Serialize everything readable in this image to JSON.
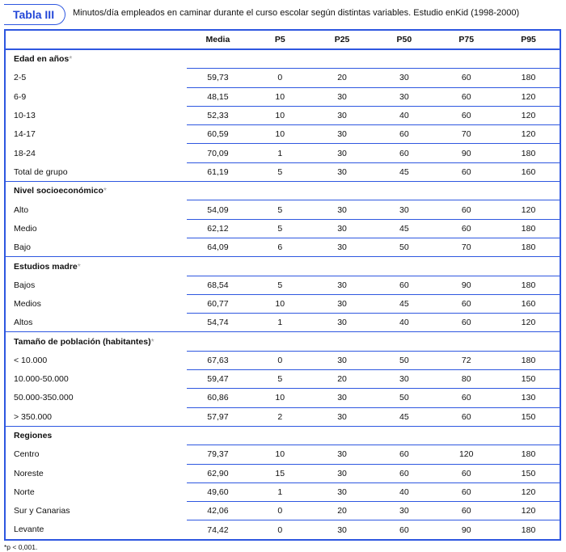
{
  "badge": "Tabla III",
  "title": "Minutos/día empleados en caminar durante el curso escolar según distintas variables. Estudio enKid (1998-2000)",
  "colors": {
    "accent": "#2e57e0",
    "badge_text": "#2448d8"
  },
  "columns": [
    "",
    "Media",
    "P5",
    "P25",
    "P50",
    "P75",
    "P95"
  ],
  "groups": [
    {
      "label": "Edad en años",
      "marker": "*",
      "rows": [
        [
          "2-5",
          "59,73",
          "0",
          "20",
          "30",
          "60",
          "180"
        ],
        [
          "6-9",
          "48,15",
          "10",
          "30",
          "30",
          "60",
          "120"
        ],
        [
          "10-13",
          "52,33",
          "10",
          "30",
          "40",
          "60",
          "120"
        ],
        [
          "14-17",
          "60,59",
          "10",
          "30",
          "60",
          "70",
          "120"
        ],
        [
          "18-24",
          "70,09",
          "1",
          "30",
          "60",
          "90",
          "180"
        ],
        [
          "Total de grupo",
          "61,19",
          "5",
          "30",
          "45",
          "60",
          "160"
        ]
      ]
    },
    {
      "label": "Nivel socioeconómico",
      "marker": "*",
      "rows": [
        [
          "Alto",
          "54,09",
          "5",
          "30",
          "30",
          "60",
          "120"
        ],
        [
          "Medio",
          "62,12",
          "5",
          "30",
          "45",
          "60",
          "180"
        ],
        [
          "Bajo",
          "64,09",
          "6",
          "30",
          "50",
          "70",
          "180"
        ]
      ]
    },
    {
      "label": "Estudios madre",
      "marker": "*",
      "rows": [
        [
          "Bajos",
          "68,54",
          "5",
          "30",
          "60",
          "90",
          "180"
        ],
        [
          "Medios",
          "60,77",
          "10",
          "30",
          "45",
          "60",
          "160"
        ],
        [
          "Altos",
          "54,74",
          "1",
          "30",
          "40",
          "60",
          "120"
        ]
      ]
    },
    {
      "label": "Tamaño de población (habitantes)",
      "marker": "*",
      "rows": [
        [
          "< 10.000",
          "67,63",
          "0",
          "30",
          "50",
          "72",
          "180"
        ],
        [
          "10.000-50.000",
          "59,47",
          "5",
          "20",
          "30",
          "80",
          "150"
        ],
        [
          "50.000-350.000",
          "60,86",
          "10",
          "30",
          "50",
          "60",
          "130"
        ],
        [
          "> 350.000",
          "57,97",
          "2",
          "30",
          "45",
          "60",
          "150"
        ]
      ]
    },
    {
      "label": "Regiones",
      "marker": "",
      "rows": [
        [
          "Centro",
          "79,37",
          "10",
          "30",
          "60",
          "120",
          "180"
        ],
        [
          "Noreste",
          "62,90",
          "15",
          "30",
          "60",
          "60",
          "150"
        ],
        [
          "Norte",
          "49,60",
          "1",
          "30",
          "40",
          "60",
          "120"
        ],
        [
          "Sur y Canarias",
          "42,06",
          "0",
          "20",
          "30",
          "60",
          "120"
        ],
        [
          "Levante",
          "74,42",
          "0",
          "30",
          "60",
          "90",
          "180"
        ]
      ]
    }
  ],
  "footnote": "*p < 0,001."
}
